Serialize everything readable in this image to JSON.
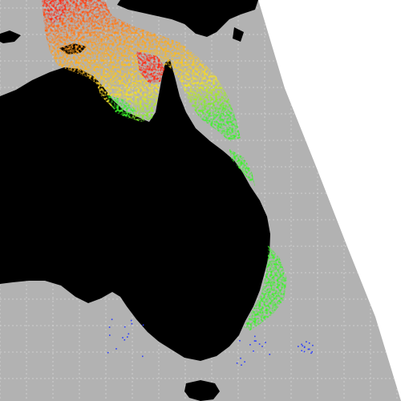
{
  "map": {
    "region": "Australia",
    "colors": {
      "background": "#ffffff",
      "ocean": "#b2b2b2",
      "land": "#000000",
      "grid": "#cfcfcf",
      "data_cold": "#2a3cff",
      "data_cool": "#3cf52a",
      "data_mid": "#f2e12a",
      "data_warm": "#ff9b1f",
      "data_hot": "#ff2a12"
    },
    "gridlines": true
  }
}
